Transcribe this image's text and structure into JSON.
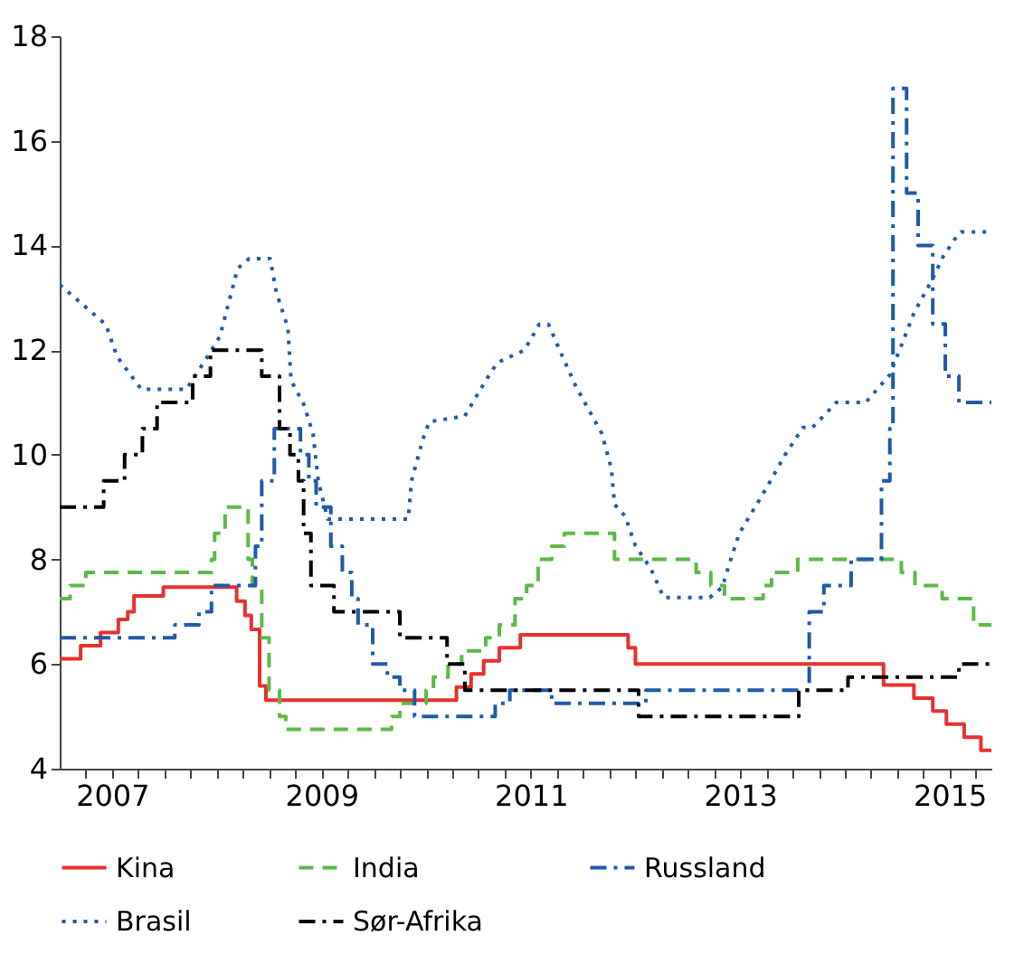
{
  "chart_data": {
    "type": "step",
    "xlim": [
      2007,
      2015.9
    ],
    "xticks": [
      {
        "value": 2007.25,
        "label": null
      },
      {
        "value": 2007.5,
        "label": "2007"
      },
      {
        "value": 2007.75,
        "label": null
      },
      {
        "value": 2008,
        "label": null
      },
      {
        "value": 2008.25,
        "label": null
      },
      {
        "value": 2008.5,
        "label": null
      },
      {
        "value": 2008.75,
        "label": null
      },
      {
        "value": 2009,
        "label": null
      },
      {
        "value": 2009.25,
        "label": null
      },
      {
        "value": 2009.5,
        "label": "2009"
      },
      {
        "value": 2009.75,
        "label": null
      },
      {
        "value": 2010,
        "label": null
      },
      {
        "value": 2010.25,
        "label": null
      },
      {
        "value": 2010.5,
        "label": null
      },
      {
        "value": 2010.75,
        "label": null
      },
      {
        "value": 2011,
        "label": null
      },
      {
        "value": 2011.25,
        "label": null
      },
      {
        "value": 2011.5,
        "label": "2011"
      },
      {
        "value": 2011.75,
        "label": null
      },
      {
        "value": 2012,
        "label": null
      },
      {
        "value": 2012.25,
        "label": null
      },
      {
        "value": 2012.5,
        "label": null
      },
      {
        "value": 2012.75,
        "label": null
      },
      {
        "value": 2013,
        "label": null
      },
      {
        "value": 2013.25,
        "label": null
      },
      {
        "value": 2013.5,
        "label": "2013"
      },
      {
        "value": 2013.75,
        "label": null
      },
      {
        "value": 2014,
        "label": null
      },
      {
        "value": 2014.25,
        "label": null
      },
      {
        "value": 2014.5,
        "label": null
      },
      {
        "value": 2014.75,
        "label": null
      },
      {
        "value": 2015,
        "label": null
      },
      {
        "value": 2015.25,
        "label": null
      },
      {
        "value": 2015.5,
        "label": "2015"
      },
      {
        "value": 2015.75,
        "label": null
      }
    ],
    "ylim": [
      4,
      18
    ],
    "yticks": [
      4,
      6,
      8,
      10,
      12,
      14,
      16,
      18
    ],
    "grid": false,
    "legend": "bottom",
    "series": [
      {
        "name": "Kina",
        "type": "step",
        "color": "#e8312f",
        "line_style": "solid",
        "x": [
          2007.0,
          2007.2,
          2007.39,
          2007.56,
          2007.65,
          2007.71,
          2007.99,
          2008.69,
          2008.77,
          2008.83,
          2008.91,
          2008.97,
          2010.79,
          2010.93,
          2011.05,
          2011.2,
          2011.4,
          2012.43,
          2012.5,
          2014.87,
          2015.16,
          2015.34,
          2015.47,
          2015.64,
          2015.8,
          2015.9
        ],
        "values": [
          6.1,
          6.35,
          6.6,
          6.85,
          7.0,
          7.3,
          7.47,
          7.2,
          6.93,
          6.66,
          5.58,
          5.31,
          5.56,
          5.81,
          6.06,
          6.31,
          6.56,
          6.31,
          6.0,
          5.6,
          5.35,
          5.1,
          4.85,
          4.6,
          4.35,
          4.35
        ]
      },
      {
        "name": "India",
        "type": "step",
        "color": "#5bba47",
        "line_style": "dashed",
        "x": [
          2007.0,
          2007.1,
          2007.25,
          2008.45,
          2008.48,
          2008.58,
          2008.8,
          2008.84,
          2008.93,
          2009.0,
          2009.1,
          2009.16,
          2010.17,
          2010.25,
          2010.5,
          2010.57,
          2010.71,
          2010.84,
          2011.07,
          2011.2,
          2011.35,
          2011.46,
          2011.57,
          2011.7,
          2011.82,
          2012.3,
          2013.08,
          2013.22,
          2013.35,
          2013.72,
          2013.8,
          2014.05,
          2015.04,
          2015.17,
          2015.43,
          2015.73,
          2015.9
        ],
        "values": [
          7.25,
          7.5,
          7.75,
          8.0,
          8.5,
          9.0,
          8.0,
          7.5,
          6.5,
          5.5,
          5.0,
          4.75,
          5.0,
          5.25,
          5.5,
          5.75,
          6.0,
          6.25,
          6.5,
          6.75,
          7.25,
          7.5,
          8.0,
          8.25,
          8.5,
          8.0,
          7.75,
          7.5,
          7.25,
          7.5,
          7.75,
          8.0,
          7.75,
          7.5,
          7.25,
          6.75,
          6.75
        ]
      },
      {
        "name": "Russland",
        "type": "step",
        "color": "#1f5aa6",
        "line_style": "dashdot",
        "x": [
          2007.0,
          2008.1,
          2008.33,
          2008.45,
          2008.87,
          2008.93,
          2009.05,
          2009.3,
          2009.38,
          2009.45,
          2009.59,
          2009.7,
          2009.79,
          2009.85,
          2009.99,
          2010.13,
          2010.25,
          2010.39,
          2011.16,
          2011.3,
          2011.7,
          2012.6,
          2014.16,
          2014.3,
          2014.56,
          2014.85,
          2014.93,
          2014.96,
          2015.09,
          2015.2,
          2015.34,
          2015.46,
          2015.59,
          2015.9
        ],
        "values": [
          6.5,
          6.75,
          7.0,
          7.5,
          8.25,
          9.5,
          10.5,
          10.0,
          9.5,
          9.0,
          8.25,
          7.75,
          7.25,
          6.75,
          6.0,
          5.75,
          5.5,
          5.0,
          5.25,
          5.5,
          5.25,
          5.5,
          7.0,
          7.5,
          8.0,
          9.5,
          10.5,
          17.0,
          15.0,
          14.0,
          12.5,
          11.5,
          11.0,
          11.0
        ]
      },
      {
        "name": "Brasil",
        "type": "line",
        "color": "#1f5aa6",
        "line_style": "dotted",
        "x": [
          2007.0,
          2007.44,
          2007.55,
          2007.78,
          2008.21,
          2008.41,
          2008.53,
          2008.7,
          2008.81,
          2009.01,
          2009.07,
          2009.18,
          2009.21,
          2009.33,
          2009.42,
          2009.47,
          2009.56,
          2010.33,
          2010.36,
          2010.47,
          2010.53,
          2010.87,
          2011.07,
          2011.18,
          2011.44,
          2011.58,
          2011.67,
          2011.78,
          2011.93,
          2012.04,
          2012.18,
          2012.27,
          2012.3,
          2012.4,
          2012.5,
          2012.65,
          2012.77,
          2013.21,
          2013.33,
          2013.39,
          2013.49,
          2013.64,
          2013.79,
          2013.93,
          2014.1,
          2014.19,
          2014.42,
          2014.7,
          2014.93,
          2015.04,
          2015.16,
          2015.33,
          2015.44,
          2015.55,
          2015.61,
          2015.9
        ],
        "values": [
          13.25,
          12.49,
          11.87,
          11.25,
          11.25,
          11.87,
          12.26,
          13.56,
          13.75,
          13.75,
          13.1,
          12.43,
          11.42,
          10.97,
          10.4,
          9.5,
          8.77,
          8.77,
          9.5,
          10.3,
          10.63,
          10.74,
          11.42,
          11.76,
          12.0,
          12.49,
          12.49,
          11.98,
          11.31,
          10.91,
          10.4,
          9.73,
          9.05,
          8.83,
          8.26,
          7.81,
          7.27,
          7.27,
          7.47,
          7.87,
          8.49,
          8.99,
          9.5,
          10.0,
          10.52,
          10.52,
          11.0,
          11.0,
          11.53,
          12.09,
          12.71,
          13.33,
          13.79,
          14.12,
          14.26,
          14.26
        ]
      },
      {
        "name": "Sør-Afrika",
        "type": "step",
        "color": "#000000",
        "line_style": "dashdot",
        "x": [
          2007.0,
          2007.42,
          2007.62,
          2007.79,
          2007.93,
          2008.27,
          2008.44,
          2008.93,
          2009.1,
          2009.2,
          2009.28,
          2009.33,
          2009.4,
          2009.62,
          2010.25,
          2010.7,
          2010.87,
          2012.53,
          2014.06,
          2014.53,
          2015.59,
          2015.9
        ],
        "values": [
          9.0,
          9.5,
          10.0,
          10.5,
          11.0,
          11.5,
          12.0,
          11.5,
          10.5,
          10.0,
          9.5,
          8.5,
          7.5,
          7.0,
          6.5,
          6.0,
          5.5,
          5.0,
          5.5,
          5.75,
          6.0,
          6.0
        ]
      }
    ]
  }
}
